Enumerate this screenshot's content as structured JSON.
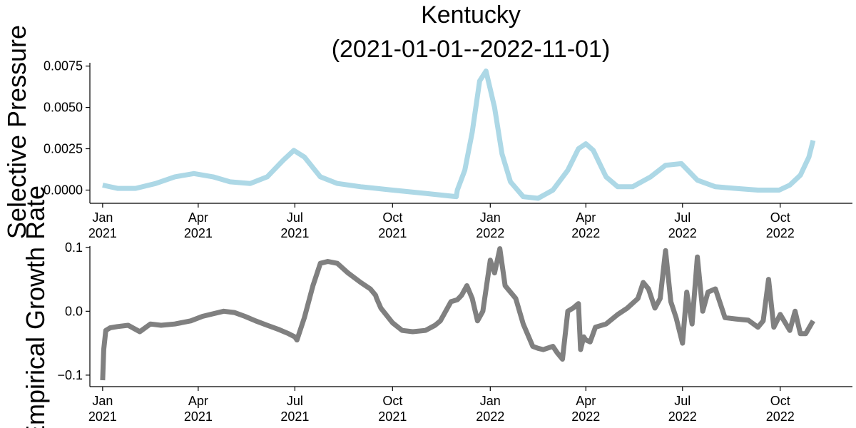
{
  "figure": {
    "title_line1": "Kentucky",
    "title_line2": "(2021-01-01--2022-11-01)"
  },
  "chart_data": [
    {
      "type": "line",
      "title": "Kentucky (2021-01-01--2022-11-01)",
      "ylabel": "Selective Pressure",
      "xlabel": "",
      "xlim": [
        "2020-12-20",
        "2022-12-08"
      ],
      "ylim": [
        -0.0008,
        0.0077
      ],
      "grid": false,
      "color": "#add8e6",
      "yticks": [
        {
          "value": 0.0,
          "label": "0.0000"
        },
        {
          "value": 0.0025,
          "label": "0.0025"
        },
        {
          "value": 0.005,
          "label": "0.0050"
        },
        {
          "value": 0.0075,
          "label": "0.0075"
        }
      ],
      "xticks": [
        {
          "date": "2021-01-01",
          "month": "Jan",
          "year": "2021"
        },
        {
          "date": "2021-04-01",
          "month": "Apr",
          "year": "2021"
        },
        {
          "date": "2021-07-01",
          "month": "Jul",
          "year": "2021"
        },
        {
          "date": "2021-10-01",
          "month": "Oct",
          "year": "2021"
        },
        {
          "date": "2022-01-01",
          "month": "Jan",
          "year": "2022"
        },
        {
          "date": "2022-04-01",
          "month": "Apr",
          "year": "2022"
        },
        {
          "date": "2022-07-01",
          "month": "Jul",
          "year": "2022"
        },
        {
          "date": "2022-10-01",
          "month": "Oct",
          "year": "2022"
        }
      ],
      "series": [
        {
          "x": [
            "2021-01-01",
            "2021-01-15",
            "2021-02-01",
            "2021-02-20",
            "2021-03-10",
            "2021-03-28",
            "2021-04-15",
            "2021-05-01",
            "2021-05-20",
            "2021-06-05",
            "2021-06-20",
            "2021-06-30",
            "2021-07-10",
            "2021-07-25",
            "2021-08-10",
            "2021-09-01",
            "2021-10-01",
            "2021-11-01",
            "2021-11-30",
            "2021-12-01",
            "2021-12-08",
            "2021-12-15",
            "2021-12-22",
            "2021-12-28",
            "2022-01-05",
            "2022-01-12",
            "2022-01-20",
            "2022-02-01",
            "2022-02-15",
            "2022-03-01",
            "2022-03-15",
            "2022-03-25",
            "2022-04-01",
            "2022-04-08",
            "2022-04-20",
            "2022-05-01",
            "2022-05-15",
            "2022-06-01",
            "2022-06-15",
            "2022-06-30",
            "2022-07-15",
            "2022-08-01",
            "2022-08-20",
            "2022-09-10",
            "2022-09-30",
            "2022-10-10",
            "2022-10-20",
            "2022-10-28",
            "2022-11-01"
          ],
          "y": [
            0.0003,
            0.0001,
            0.0001,
            0.0004,
            0.0008,
            0.001,
            0.0008,
            0.0005,
            0.0004,
            0.0008,
            0.0018,
            0.0024,
            0.002,
            0.0008,
            0.0004,
            0.0002,
            0.0,
            -0.0002,
            -0.0004,
            0.0,
            0.0012,
            0.0035,
            0.0066,
            0.0072,
            0.005,
            0.0022,
            0.0005,
            -0.0004,
            -0.0005,
            0.0,
            0.0012,
            0.0025,
            0.0028,
            0.0024,
            0.0008,
            0.0002,
            0.0002,
            0.0008,
            0.0015,
            0.0016,
            0.0006,
            0.0002,
            0.0001,
            0.0,
            0.0,
            0.0003,
            0.0009,
            0.002,
            0.003
          ]
        }
      ]
    },
    {
      "type": "line",
      "title": "",
      "ylabel": "Empirical Growth Rate",
      "xlabel": "",
      "xlim": [
        "2020-12-20",
        "2022-12-08"
      ],
      "ylim": [
        -0.118,
        0.102
      ],
      "grid": false,
      "color": "#808080",
      "yticks": [
        {
          "value": -0.1,
          "label": "−0.1"
        },
        {
          "value": 0.0,
          "label": "0.0"
        },
        {
          "value": 0.1,
          "label": "0.1"
        }
      ],
      "xticks": [
        {
          "date": "2021-01-01",
          "month": "Jan",
          "year": "2021"
        },
        {
          "date": "2021-04-01",
          "month": "Apr",
          "year": "2021"
        },
        {
          "date": "2021-07-01",
          "month": "Jul",
          "year": "2021"
        },
        {
          "date": "2021-10-01",
          "month": "Oct",
          "year": "2021"
        },
        {
          "date": "2022-01-01",
          "month": "Jan",
          "year": "2022"
        },
        {
          "date": "2022-04-01",
          "month": "Apr",
          "year": "2022"
        },
        {
          "date": "2022-07-01",
          "month": "Jul",
          "year": "2022"
        },
        {
          "date": "2022-10-01",
          "month": "Oct",
          "year": "2022"
        }
      ],
      "series": [
        {
          "x": [
            "2021-01-01",
            "2021-01-02",
            "2021-01-04",
            "2021-01-08",
            "2021-01-15",
            "2021-01-25",
            "2021-02-05",
            "2021-02-15",
            "2021-02-25",
            "2021-03-10",
            "2021-03-25",
            "2021-04-05",
            "2021-04-15",
            "2021-04-25",
            "2021-05-05",
            "2021-05-15",
            "2021-05-25",
            "2021-06-05",
            "2021-06-15",
            "2021-06-25",
            "2021-07-01",
            "2021-07-03",
            "2021-07-10",
            "2021-07-18",
            "2021-07-25",
            "2021-08-01",
            "2021-08-10",
            "2021-08-20",
            "2021-09-01",
            "2021-09-10",
            "2021-09-15",
            "2021-09-16",
            "2021-09-20",
            "2021-10-01",
            "2021-10-10",
            "2021-10-20",
            "2021-11-01",
            "2021-11-10",
            "2021-11-15",
            "2021-11-20",
            "2021-11-25",
            "2021-12-01",
            "2021-12-05",
            "2021-12-10",
            "2021-12-15",
            "2021-12-20",
            "2021-12-25",
            "2022-01-01",
            "2022-01-05",
            "2022-01-10",
            "2022-01-15",
            "2022-01-20",
            "2022-01-25",
            "2022-02-01",
            "2022-02-10",
            "2022-02-15",
            "2022-02-20",
            "2022-03-01",
            "2022-03-05",
            "2022-03-10",
            "2022-03-15",
            "2022-03-20",
            "2022-03-25",
            "2022-03-27",
            "2022-03-30",
            "2022-04-01",
            "2022-04-05",
            "2022-04-10",
            "2022-04-20",
            "2022-05-01",
            "2022-05-10",
            "2022-05-20",
            "2022-05-25",
            "2022-05-30",
            "2022-06-05",
            "2022-06-10",
            "2022-06-15",
            "2022-06-20",
            "2022-06-25",
            "2022-07-01",
            "2022-07-05",
            "2022-07-10",
            "2022-07-15",
            "2022-07-20",
            "2022-07-25",
            "2022-08-01",
            "2022-08-10",
            "2022-08-20",
            "2022-09-01",
            "2022-09-10",
            "2022-09-15",
            "2022-09-20",
            "2022-09-25",
            "2022-10-01",
            "2022-10-10",
            "2022-10-15",
            "2022-10-20",
            "2022-10-25",
            "2022-11-01"
          ],
          "y": [
            -0.108,
            -0.06,
            -0.03,
            -0.026,
            -0.024,
            -0.022,
            -0.032,
            -0.02,
            -0.022,
            -0.02,
            -0.015,
            -0.008,
            -0.004,
            0.0,
            -0.002,
            -0.008,
            -0.015,
            -0.022,
            -0.028,
            -0.035,
            -0.04,
            -0.045,
            -0.01,
            0.04,
            0.075,
            0.078,
            0.075,
            0.06,
            0.045,
            0.035,
            0.025,
            0.02,
            0.005,
            -0.018,
            -0.03,
            -0.032,
            -0.03,
            -0.022,
            -0.015,
            0.0,
            0.015,
            0.018,
            0.025,
            0.04,
            0.02,
            -0.015,
            0.0,
            0.08,
            0.06,
            0.098,
            0.04,
            0.03,
            0.02,
            -0.02,
            -0.055,
            -0.058,
            -0.06,
            -0.055,
            -0.065,
            -0.075,
            0.0,
            0.005,
            0.012,
            -0.06,
            -0.04,
            -0.045,
            -0.048,
            -0.025,
            -0.02,
            -0.005,
            0.005,
            0.02,
            0.045,
            0.035,
            0.005,
            0.02,
            0.095,
            0.015,
            -0.01,
            -0.05,
            0.03,
            -0.02,
            0.085,
            0.0,
            0.03,
            0.035,
            -0.01,
            -0.012,
            -0.014,
            -0.025,
            -0.015,
            0.05,
            -0.025,
            -0.005,
            -0.03,
            0.0,
            -0.035,
            -0.035,
            -0.015
          ]
        }
      ]
    }
  ]
}
